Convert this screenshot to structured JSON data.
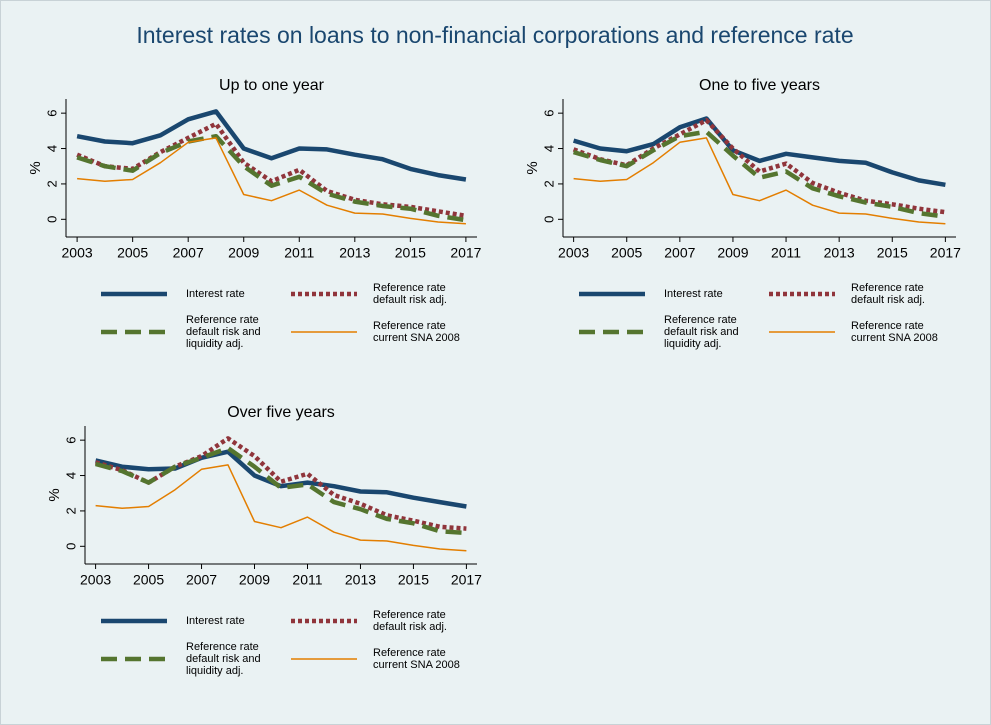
{
  "title": "Interest rates on loans to non-financial corporations and reference rate",
  "chart_data": [
    {
      "type": "line",
      "title": "Up to one year",
      "y_label": "%",
      "x": [
        2003,
        2004,
        2005,
        2006,
        2007,
        2008,
        2009,
        2010,
        2011,
        2012,
        2013,
        2014,
        2015,
        2016,
        2017
      ],
      "xlim": [
        2002.6,
        2017.4
      ],
      "xticks": [
        2003,
        2005,
        2007,
        2009,
        2011,
        2013,
        2015,
        2017
      ],
      "ylim": [
        -1,
        6.8
      ],
      "yticks": [
        0,
        2,
        4,
        6
      ],
      "grid": false,
      "series": [
        {
          "name": "Interest rate",
          "color": "#1a476f",
          "values": [
            4.7,
            4.4,
            4.3,
            4.75,
            5.65,
            6.1,
            4.0,
            3.45,
            4.0,
            3.95,
            3.65,
            3.4,
            2.85,
            2.5,
            2.25
          ]
        },
        {
          "name": "Reference rate default risk adj.",
          "color": "#90353b",
          "values": [
            3.65,
            3.0,
            2.85,
            3.8,
            4.6,
            5.4,
            3.2,
            2.15,
            2.8,
            1.6,
            1.1,
            0.85,
            0.7,
            0.45,
            0.2
          ]
        },
        {
          "name": "Reference rate default risk and liquidity adj.",
          "color": "#55752f",
          "values": [
            3.5,
            3.0,
            2.75,
            3.75,
            4.4,
            4.7,
            3.0,
            1.9,
            2.4,
            1.45,
            1.0,
            0.75,
            0.6,
            0.2,
            -0.05
          ]
        },
        {
          "name": "Reference rate current SNA 2008",
          "color": "#e37e00",
          "values": [
            2.3,
            2.15,
            2.25,
            3.2,
            4.35,
            4.6,
            1.4,
            1.05,
            1.65,
            0.8,
            0.35,
            0.3,
            0.05,
            -0.15,
            -0.25
          ]
        }
      ]
    },
    {
      "type": "line",
      "title": "One to five years",
      "y_label": "%",
      "x": [
        2003,
        2004,
        2005,
        2006,
        2007,
        2008,
        2009,
        2010,
        2011,
        2012,
        2013,
        2014,
        2015,
        2016,
        2017
      ],
      "xlim": [
        2002.6,
        2017.4
      ],
      "xticks": [
        2003,
        2005,
        2007,
        2009,
        2011,
        2013,
        2015,
        2017
      ],
      "ylim": [
        -1,
        6.8
      ],
      "yticks": [
        0,
        2,
        4,
        6
      ],
      "grid": false,
      "series": [
        {
          "name": "Interest rate",
          "color": "#1a476f",
          "values": [
            4.45,
            4.0,
            3.85,
            4.25,
            5.2,
            5.7,
            3.9,
            3.3,
            3.7,
            3.5,
            3.3,
            3.2,
            2.65,
            2.2,
            1.95
          ]
        },
        {
          "name": "Reference rate default risk adj.",
          "color": "#90353b",
          "values": [
            3.95,
            3.4,
            3.05,
            4.0,
            4.8,
            5.6,
            4.0,
            2.7,
            3.15,
            2.05,
            1.5,
            1.05,
            0.85,
            0.6,
            0.4
          ]
        },
        {
          "name": "Reference rate default risk and liquidity adj.",
          "color": "#55752f",
          "values": [
            3.8,
            3.35,
            3.0,
            3.9,
            4.7,
            4.95,
            3.6,
            2.35,
            2.7,
            1.75,
            1.3,
            0.95,
            0.7,
            0.35,
            0.15
          ]
        },
        {
          "name": "Reference rate current SNA 2008",
          "color": "#e37e00",
          "values": [
            2.3,
            2.15,
            2.25,
            3.2,
            4.35,
            4.6,
            1.4,
            1.05,
            1.65,
            0.8,
            0.35,
            0.3,
            0.05,
            -0.15,
            -0.25
          ]
        }
      ]
    },
    {
      "type": "line",
      "title": "Over five years",
      "y_label": "%",
      "x": [
        2003,
        2004,
        2005,
        2006,
        2007,
        2008,
        2009,
        2010,
        2011,
        2012,
        2013,
        2014,
        2015,
        2016,
        2017
      ],
      "xlim": [
        2002.6,
        2017.4
      ],
      "xticks": [
        2003,
        2005,
        2007,
        2009,
        2011,
        2013,
        2015,
        2017
      ],
      "ylim": [
        -1,
        6.8
      ],
      "yticks": [
        0,
        2,
        4,
        6
      ],
      "grid": false,
      "series": [
        {
          "name": "Interest rate",
          "color": "#1a476f",
          "values": [
            4.85,
            4.5,
            4.35,
            4.4,
            5.0,
            5.35,
            4.0,
            3.4,
            3.6,
            3.4,
            3.1,
            3.05,
            2.75,
            2.5,
            2.25
          ]
        },
        {
          "name": "Reference rate default risk adj.",
          "color": "#90353b",
          "values": [
            4.75,
            4.3,
            3.6,
            4.5,
            5.1,
            6.1,
            5.1,
            3.65,
            4.1,
            2.9,
            2.4,
            1.75,
            1.45,
            1.1,
            1.0
          ]
        },
        {
          "name": "Reference rate default risk and liquidity adj.",
          "color": "#55752f",
          "values": [
            4.65,
            4.25,
            3.6,
            4.5,
            5.0,
            5.55,
            4.5,
            3.3,
            3.5,
            2.5,
            2.1,
            1.55,
            1.3,
            0.85,
            0.75
          ]
        },
        {
          "name": "Reference rate current SNA 2008",
          "color": "#e37e00",
          "values": [
            2.3,
            2.15,
            2.25,
            3.2,
            4.35,
            4.6,
            1.4,
            1.05,
            1.65,
            0.8,
            0.35,
            0.3,
            0.05,
            -0.15,
            -0.25
          ]
        }
      ]
    }
  ]
}
